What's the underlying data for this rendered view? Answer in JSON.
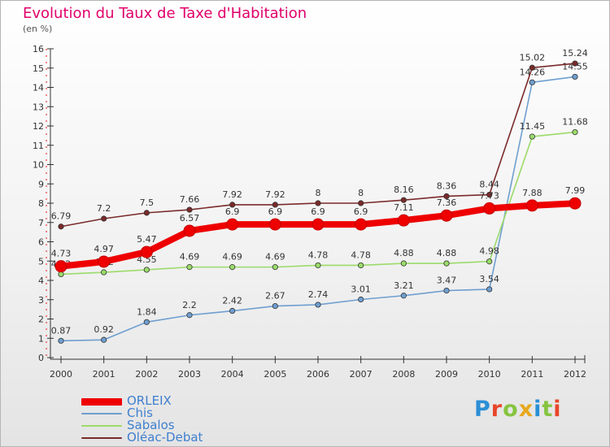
{
  "header": {
    "title": "Evolution du Taux de Taxe d'Habitation",
    "unit": "(en %)"
  },
  "brand": {
    "letters": [
      "P",
      "r",
      "o",
      "x",
      "i",
      "t",
      "i"
    ],
    "colors": [
      "#2a8fd6",
      "#e8462a",
      "#86c440",
      "#e8a81e",
      "#2a8fd6",
      "#86c440",
      "#e8462a"
    ]
  },
  "chart_data": {
    "type": "line",
    "title": "Evolution du Taux de Taxe d'Habitation",
    "ylabel": "(en %)",
    "xlabel": "",
    "x": [
      "2000",
      "2001",
      "2002",
      "2003",
      "2004",
      "2005",
      "2006",
      "2007",
      "2008",
      "2009",
      "2010",
      "2011",
      "2012"
    ],
    "ylim": [
      0,
      16
    ],
    "yticks": [
      "0",
      "1",
      "2",
      "3",
      "4",
      "5",
      "6",
      "7",
      "8",
      "9",
      "10",
      "11",
      "12",
      "13",
      "14",
      "15",
      "16"
    ],
    "grid": false,
    "legend_position": "bottom-left",
    "series": [
      {
        "name": "ORLEIX",
        "color": "#ee0000",
        "values": [
          4.73,
          4.97,
          5.47,
          6.57,
          6.9,
          6.9,
          6.9,
          6.9,
          7.11,
          7.36,
          7.73,
          7.88,
          7.99
        ],
        "labels": [
          "4.73",
          "4.97",
          "5.47",
          "6.57",
          "6.9",
          "6.9",
          "6.9",
          "6.9",
          "7.11",
          "7.36",
          "7.73",
          "7.88",
          "7.99"
        ]
      },
      {
        "name": "Chis",
        "color": "#6f9fd0",
        "values": [
          0.87,
          0.92,
          1.84,
          2.2,
          2.42,
          2.67,
          2.74,
          3.01,
          3.21,
          3.47,
          3.54,
          14.26,
          14.55
        ],
        "labels": [
          "0.87",
          "0.92",
          "1.84",
          "2.2",
          "2.42",
          "2.67",
          "2.74",
          "3.01",
          "3.21",
          "3.47",
          "3.54",
          "14.26",
          "14.55"
        ]
      },
      {
        "name": "Sabalos",
        "color": "#9bdb6a",
        "values": [
          4.32,
          4.42,
          4.55,
          4.69,
          4.69,
          4.69,
          4.78,
          4.78,
          4.88,
          4.88,
          4.98,
          11.45,
          11.68
        ],
        "labels": [
          "4.32",
          "4.42",
          "4.55",
          "4.69",
          "4.69",
          "4.69",
          "4.78",
          "4.78",
          "4.88",
          "4.88",
          "4.98",
          "11.45",
          "11.68"
        ]
      },
      {
        "name": "Oléac-Debat",
        "color": "#7a2a2a",
        "values": [
          6.79,
          7.2,
          7.5,
          7.66,
          7.92,
          7.92,
          8,
          8,
          8.16,
          8.36,
          8.44,
          15.02,
          15.24
        ],
        "labels": [
          "6.79",
          "7.2",
          "7.5",
          "7.66",
          "7.92",
          "7.92",
          "8",
          "8",
          "8.16",
          "8.36",
          "8.44",
          "15.02",
          "15.24"
        ]
      }
    ]
  }
}
